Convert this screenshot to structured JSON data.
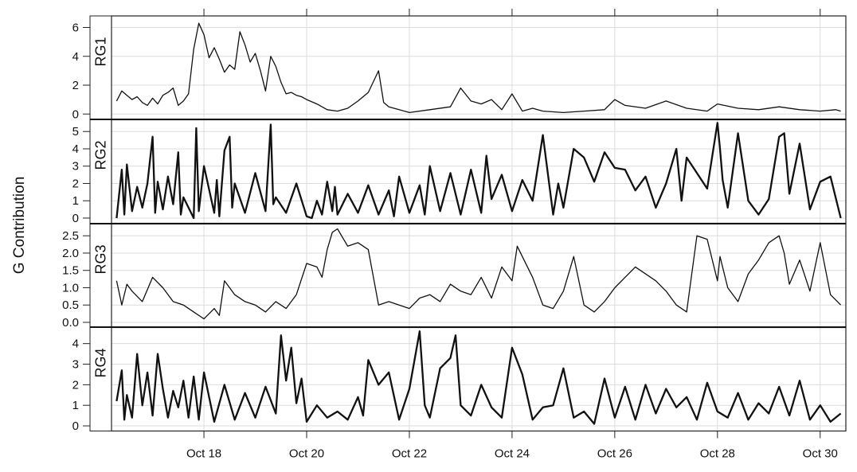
{
  "chart_data": {
    "type": "line",
    "ylabel": "G Contribution",
    "xlabel": "",
    "x_tick_labels": [
      "Oct 18",
      "Oct 20",
      "Oct 22",
      "Oct 24",
      "Oct 26",
      "Oct 28",
      "Oct 30"
    ],
    "x_tick_days": [
      18,
      20,
      22,
      24,
      26,
      28,
      30
    ],
    "xlim": [
      16.2,
      30.5
    ],
    "grid": true,
    "grid_color": "#dcdcdc",
    "line_color": "#111111",
    "panels": [
      {
        "name": "RG1",
        "ylim": [
          -0.4,
          6.8
        ],
        "yticks": [
          0,
          2,
          4,
          6
        ],
        "y_tick_labels": [
          "0",
          "2",
          "4",
          "6"
        ],
        "x": [
          16.3,
          16.4,
          16.5,
          16.6,
          16.7,
          16.8,
          16.9,
          17.0,
          17.1,
          17.2,
          17.3,
          17.4,
          17.5,
          17.6,
          17.7,
          17.8,
          17.9,
          18.0,
          18.1,
          18.2,
          18.3,
          18.4,
          18.5,
          18.6,
          18.7,
          18.8,
          18.9,
          19.0,
          19.1,
          19.2,
          19.3,
          19.4,
          19.5,
          19.6,
          19.7,
          19.8,
          19.9,
          20.0,
          20.2,
          20.4,
          20.6,
          20.8,
          21.0,
          21.2,
          21.4,
          21.5,
          21.6,
          21.8,
          22.0,
          22.4,
          22.8,
          23.0,
          23.2,
          23.4,
          23.6,
          23.8,
          24.0,
          24.2,
          24.4,
          24.6,
          25.0,
          25.4,
          25.8,
          26.0,
          26.2,
          26.6,
          27.0,
          27.4,
          27.8,
          28.0,
          28.4,
          28.8,
          29.2,
          29.6,
          30.0,
          30.3,
          30.4
        ],
        "y": [
          0.9,
          1.6,
          1.3,
          1.0,
          1.2,
          0.8,
          0.6,
          1.1,
          0.7,
          1.3,
          1.5,
          1.8,
          0.6,
          0.9,
          1.4,
          4.5,
          6.3,
          5.5,
          3.9,
          4.6,
          3.8,
          2.9,
          3.4,
          3.1,
          5.7,
          4.8,
          3.6,
          4.2,
          3.0,
          1.6,
          4.0,
          3.3,
          2.2,
          1.4,
          1.5,
          1.3,
          1.2,
          1.0,
          0.7,
          0.3,
          0.2,
          0.4,
          0.9,
          1.5,
          3.0,
          0.8,
          0.5,
          0.3,
          0.1,
          0.3,
          0.5,
          1.8,
          0.9,
          0.7,
          1.0,
          0.3,
          1.4,
          0.2,
          0.4,
          0.2,
          0.1,
          0.2,
          0.3,
          1.0,
          0.6,
          0.4,
          0.9,
          0.4,
          0.2,
          0.7,
          0.4,
          0.3,
          0.5,
          0.3,
          0.2,
          0.3,
          0.2
        ]
      },
      {
        "name": "RG2",
        "ylim": [
          -0.3,
          5.7
        ],
        "yticks": [
          0,
          1,
          2,
          3,
          4,
          5
        ],
        "y_tick_labels": [
          "0",
          "1",
          "2",
          "3",
          "4",
          "5"
        ],
        "x": [
          16.3,
          16.4,
          16.45,
          16.5,
          16.6,
          16.7,
          16.8,
          16.9,
          17.0,
          17.05,
          17.1,
          17.2,
          17.3,
          17.4,
          17.5,
          17.55,
          17.6,
          17.8,
          17.85,
          17.9,
          18.0,
          18.2,
          18.25,
          18.3,
          18.4,
          18.5,
          18.55,
          18.6,
          18.8,
          19.0,
          19.2,
          19.3,
          19.35,
          19.4,
          19.6,
          19.8,
          20.0,
          20.1,
          20.2,
          20.3,
          20.4,
          20.5,
          20.55,
          20.6,
          20.8,
          21.0,
          21.2,
          21.4,
          21.6,
          21.7,
          21.8,
          22.0,
          22.2,
          22.3,
          22.4,
          22.6,
          22.8,
          23.0,
          23.2,
          23.4,
          23.5,
          23.6,
          23.8,
          24.0,
          24.2,
          24.4,
          24.6,
          24.8,
          24.9,
          25.0,
          25.2,
          25.4,
          25.6,
          25.8,
          26.0,
          26.2,
          26.4,
          26.6,
          26.8,
          27.0,
          27.2,
          27.3,
          27.4,
          27.6,
          27.8,
          28.0,
          28.05,
          28.1,
          28.2,
          28.4,
          28.6,
          28.8,
          29.0,
          29.2,
          29.3,
          29.4,
          29.6,
          29.8,
          30.0,
          30.2,
          30.4
        ],
        "y": [
          0.0,
          2.8,
          0.2,
          3.1,
          0.4,
          1.8,
          0.6,
          2.0,
          4.7,
          0.3,
          2.1,
          0.5,
          2.4,
          0.8,
          3.8,
          0.2,
          1.2,
          0.0,
          5.2,
          0.4,
          3.0,
          0.3,
          2.2,
          0.1,
          3.9,
          4.7,
          0.6,
          2.0,
          0.3,
          2.6,
          0.4,
          5.4,
          0.8,
          1.2,
          0.3,
          2.0,
          0.1,
          0.0,
          1.0,
          0.2,
          2.1,
          0.4,
          1.8,
          0.2,
          1.4,
          0.3,
          1.9,
          0.2,
          1.6,
          0.1,
          2.4,
          0.3,
          1.9,
          0.2,
          3.0,
          0.4,
          2.6,
          0.2,
          2.8,
          0.3,
          3.6,
          1.1,
          2.5,
          0.4,
          2.2,
          1.0,
          4.8,
          0.2,
          2.0,
          0.6,
          4.0,
          3.5,
          2.1,
          3.8,
          2.9,
          2.8,
          1.6,
          2.4,
          0.6,
          2.0,
          4.0,
          1.0,
          3.5,
          2.6,
          1.7,
          5.5,
          4.0,
          2.2,
          0.6,
          4.9,
          1.0,
          0.2,
          1.1,
          4.7,
          4.9,
          1.4,
          4.3,
          0.5,
          2.1,
          2.4,
          0.0
        ]
      },
      {
        "name": "RG3",
        "ylim": [
          -0.15,
          2.85
        ],
        "yticks": [
          0.0,
          0.5,
          1.0,
          1.5,
          2.0,
          2.5
        ],
        "y_tick_labels": [
          "0.0",
          "0.5",
          "1.0",
          "1.5",
          "2.0",
          "2.5"
        ],
        "x": [
          16.3,
          16.4,
          16.5,
          16.6,
          16.8,
          17.0,
          17.2,
          17.4,
          17.6,
          17.8,
          18.0,
          18.2,
          18.3,
          18.4,
          18.6,
          18.8,
          19.0,
          19.2,
          19.4,
          19.6,
          19.8,
          20.0,
          20.2,
          20.3,
          20.4,
          20.5,
          20.6,
          20.8,
          21.0,
          21.2,
          21.4,
          21.6,
          21.8,
          22.0,
          22.2,
          22.4,
          22.6,
          22.8,
          23.0,
          23.2,
          23.4,
          23.6,
          23.8,
          24.0,
          24.1,
          24.2,
          24.4,
          24.6,
          24.8,
          25.0,
          25.2,
          25.4,
          25.6,
          25.8,
          26.0,
          26.2,
          26.4,
          26.6,
          26.8,
          27.0,
          27.2,
          27.4,
          27.6,
          27.8,
          28.0,
          28.05,
          28.2,
          28.4,
          28.6,
          28.8,
          29.0,
          29.2,
          29.3,
          29.4,
          29.6,
          29.8,
          30.0,
          30.2,
          30.4
        ],
        "y": [
          1.2,
          0.5,
          1.1,
          0.9,
          0.6,
          1.3,
          1.0,
          0.6,
          0.5,
          0.3,
          0.1,
          0.4,
          0.2,
          1.2,
          0.8,
          0.6,
          0.5,
          0.3,
          0.6,
          0.4,
          0.8,
          1.7,
          1.6,
          1.3,
          2.1,
          2.6,
          2.7,
          2.2,
          2.3,
          2.1,
          0.5,
          0.6,
          0.5,
          0.4,
          0.7,
          0.8,
          0.6,
          1.1,
          0.9,
          0.8,
          1.3,
          0.7,
          1.6,
          1.2,
          2.2,
          1.9,
          1.3,
          0.5,
          0.4,
          0.9,
          1.9,
          0.5,
          0.3,
          0.6,
          1.0,
          1.3,
          1.6,
          1.4,
          1.2,
          0.9,
          0.5,
          0.3,
          2.5,
          2.4,
          1.2,
          1.9,
          1.0,
          0.6,
          1.4,
          1.8,
          2.3,
          2.5,
          2.0,
          1.1,
          1.8,
          0.9,
          2.3,
          0.8,
          0.5
        ]
      },
      {
        "name": "RG4",
        "ylim": [
          -0.25,
          4.8
        ],
        "yticks": [
          0,
          1,
          2,
          3,
          4
        ],
        "y_tick_labels": [
          "0",
          "1",
          "2",
          "3",
          "4"
        ],
        "x": [
          16.3,
          16.4,
          16.45,
          16.5,
          16.6,
          16.7,
          16.8,
          16.9,
          17.0,
          17.1,
          17.2,
          17.3,
          17.4,
          17.5,
          17.6,
          17.7,
          17.8,
          17.9,
          18.0,
          18.2,
          18.4,
          18.6,
          18.8,
          19.0,
          19.2,
          19.4,
          19.5,
          19.6,
          19.7,
          19.8,
          19.9,
          20.0,
          20.2,
          20.4,
          20.6,
          20.8,
          21.0,
          21.1,
          21.2,
          21.4,
          21.6,
          21.8,
          22.0,
          22.2,
          22.3,
          22.4,
          22.6,
          22.8,
          22.9,
          23.0,
          23.2,
          23.4,
          23.6,
          23.8,
          24.0,
          24.2,
          24.4,
          24.6,
          24.8,
          25.0,
          25.2,
          25.4,
          25.6,
          25.8,
          26.0,
          26.2,
          26.4,
          26.6,
          26.8,
          27.0,
          27.2,
          27.4,
          27.6,
          27.8,
          28.0,
          28.2,
          28.4,
          28.6,
          28.8,
          29.0,
          29.2,
          29.4,
          29.6,
          29.8,
          30.0,
          30.2,
          30.4
        ],
        "y": [
          1.2,
          2.7,
          0.3,
          1.5,
          0.4,
          3.5,
          1.0,
          2.6,
          0.5,
          3.5,
          1.8,
          0.4,
          1.7,
          0.9,
          2.2,
          0.4,
          2.4,
          0.3,
          2.6,
          0.2,
          2.0,
          0.3,
          1.6,
          0.4,
          1.9,
          0.6,
          4.4,
          2.2,
          3.8,
          1.1,
          2.3,
          0.2,
          1.0,
          0.4,
          0.7,
          0.3,
          1.4,
          0.5,
          3.2,
          2.0,
          2.6,
          0.3,
          1.8,
          4.6,
          1.0,
          0.4,
          2.8,
          3.3,
          4.4,
          1.0,
          0.5,
          2.0,
          0.9,
          0.4,
          3.8,
          2.5,
          0.3,
          0.9,
          1.0,
          2.8,
          0.4,
          0.7,
          0.1,
          2.3,
          0.4,
          1.9,
          0.3,
          2.0,
          0.6,
          1.8,
          0.9,
          1.4,
          0.3,
          2.1,
          0.7,
          0.4,
          1.6,
          0.3,
          1.1,
          0.6,
          1.9,
          0.5,
          2.2,
          0.3,
          1.0,
          0.2,
          0.6
        ]
      }
    ]
  }
}
